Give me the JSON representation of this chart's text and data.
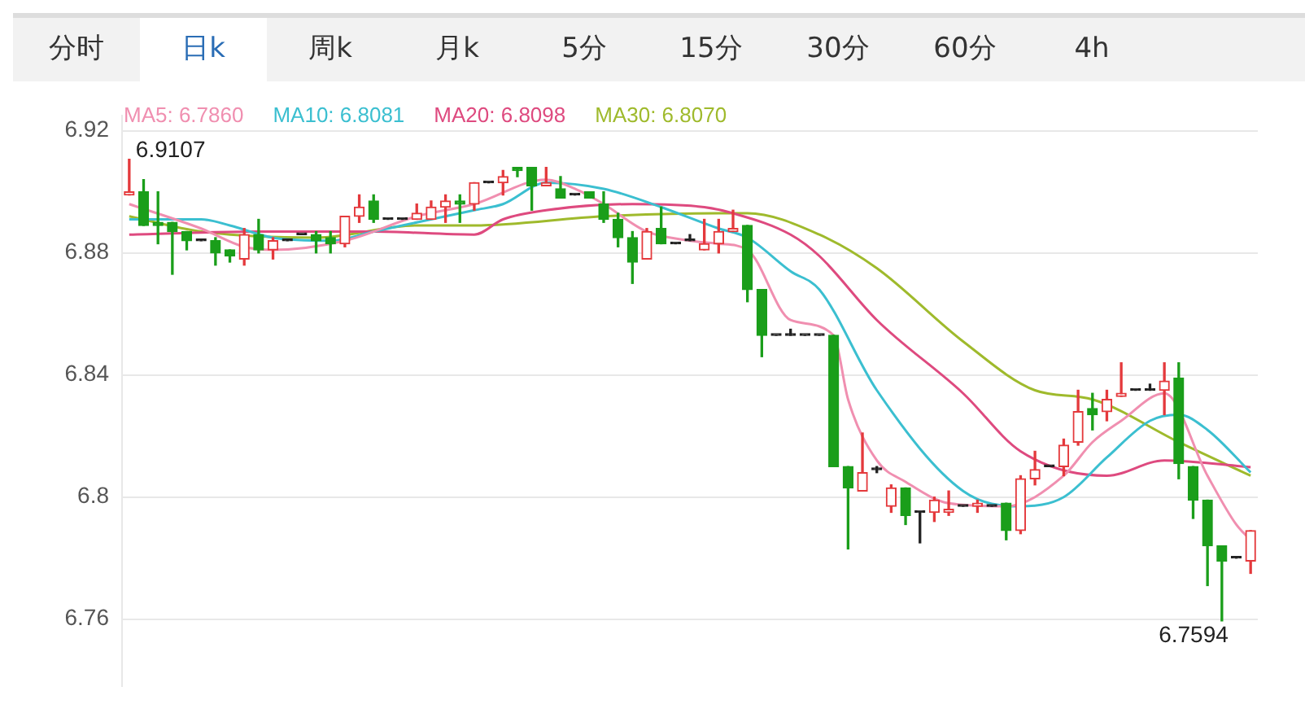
{
  "chart_data": {
    "type": "candlestick",
    "categories": [
      null,
      null,
      null,
      null,
      null,
      null,
      null,
      null,
      null,
      null,
      null,
      null,
      null,
      null,
      null,
      null,
      null,
      null,
      null,
      null,
      null,
      null,
      null,
      null,
      null,
      null,
      null,
      null,
      null,
      null,
      null,
      null,
      null,
      null,
      null,
      null,
      null,
      null,
      null,
      null,
      null,
      null,
      null,
      null,
      null,
      null,
      null,
      null,
      null,
      null,
      null,
      null,
      null,
      null,
      null,
      null,
      null,
      null,
      null,
      null,
      null,
      null,
      null,
      null,
      null,
      null,
      null,
      null,
      null,
      null,
      null,
      null,
      null,
      null,
      null,
      null,
      null,
      null,
      null
    ],
    "ohlc": [
      [
        6.899,
        6.9107,
        6.899,
        6.9
      ],
      [
        6.9,
        6.904,
        6.889,
        6.889
      ],
      [
        6.89,
        6.9,
        6.883,
        6.889
      ],
      [
        6.89,
        6.89,
        6.873,
        6.887
      ],
      [
        6.887,
        6.887,
        6.881,
        6.884
      ],
      [
        6.884,
        6.884,
        6.884,
        6.884
      ],
      [
        6.884,
        6.885,
        6.876,
        6.88
      ],
      [
        6.881,
        6.881,
        6.877,
        6.879
      ],
      [
        6.878,
        6.888,
        6.876,
        6.886
      ],
      [
        6.886,
        6.891,
        6.88,
        6.881
      ],
      [
        6.881,
        6.885,
        6.878,
        6.884
      ],
      [
        6.884,
        6.884,
        6.884,
        6.884
      ],
      [
        6.886,
        6.886,
        6.886,
        6.886
      ],
      [
        6.886,
        6.887,
        6.88,
        6.884
      ],
      [
        6.885,
        6.887,
        6.88,
        6.883
      ],
      [
        6.883,
        6.892,
        6.882,
        6.892
      ],
      [
        6.892,
        6.899,
        6.89,
        6.895
      ],
      [
        6.897,
        6.899,
        6.89,
        6.891
      ],
      [
        6.891,
        6.891,
        6.891,
        6.891
      ],
      [
        6.891,
        6.891,
        6.891,
        6.891
      ],
      [
        6.891,
        6.896,
        6.891,
        6.893
      ],
      [
        6.891,
        6.897,
        6.891,
        6.895
      ],
      [
        6.895,
        6.899,
        6.89,
        6.897
      ],
      [
        6.897,
        6.899,
        6.89,
        6.896
      ],
      [
        6.896,
        6.903,
        6.894,
        6.903
      ],
      [
        6.903,
        6.903,
        6.903,
        6.903
      ],
      [
        6.903,
        6.907,
        6.899,
        6.905
      ],
      [
        6.908,
        6.908,
        6.905,
        6.907
      ],
      [
        6.908,
        6.908,
        6.894,
        6.902
      ],
      [
        6.902,
        6.908,
        6.902,
        6.903
      ],
      [
        6.901,
        6.905,
        6.898,
        6.898
      ],
      [
        6.899,
        6.899,
        6.899,
        6.899
      ],
      [
        6.9,
        6.9,
        6.898,
        6.898
      ],
      [
        6.896,
        6.9,
        6.89,
        6.891
      ],
      [
        6.891,
        6.893,
        6.882,
        6.885
      ],
      [
        6.885,
        6.887,
        6.87,
        6.877
      ],
      [
        6.878,
        6.888,
        6.878,
        6.887
      ],
      [
        6.888,
        6.895,
        6.883,
        6.883
      ],
      [
        6.883,
        6.883,
        6.883,
        6.883
      ],
      [
        6.884,
        6.886,
        6.884,
        6.884
      ],
      [
        6.881,
        6.891,
        6.881,
        6.883
      ],
      [
        6.883,
        6.891,
        6.88,
        6.887
      ],
      [
        6.887,
        6.894,
        6.887,
        6.888
      ],
      [
        6.889,
        6.889,
        6.864,
        6.868
      ],
      [
        6.868,
        6.868,
        6.846,
        6.853
      ],
      [
        6.853,
        6.853,
        6.853,
        6.853
      ],
      [
        6.853,
        6.855,
        6.853,
        6.853
      ],
      [
        6.853,
        6.853,
        6.853,
        6.853
      ],
      [
        6.853,
        6.853,
        6.853,
        6.853
      ],
      [
        6.853,
        6.853,
        6.81,
        6.81
      ],
      [
        6.81,
        6.81,
        6.783,
        6.803
      ],
      [
        6.802,
        6.821,
        6.802,
        6.808
      ],
      [
        6.809,
        6.81,
        6.808,
        6.809
      ],
      [
        6.797,
        6.804,
        6.795,
        6.803
      ],
      [
        6.803,
        6.803,
        6.791,
        6.794
      ],
      [
        6.795,
        6.795,
        6.785,
        6.795
      ],
      [
        6.795,
        6.8,
        6.792,
        6.799
      ],
      [
        6.795,
        6.802,
        6.794,
        6.796
      ],
      [
        6.797,
        6.797,
        6.797,
        6.797
      ],
      [
        6.797,
        6.799,
        6.795,
        6.798
      ],
      [
        6.797,
        6.797,
        6.797,
        6.797
      ],
      [
        6.798,
        6.798,
        6.786,
        6.789
      ],
      [
        6.789,
        6.807,
        6.788,
        6.806
      ],
      [
        6.806,
        6.815,
        6.804,
        6.809
      ],
      [
        6.81,
        6.81,
        6.81,
        6.81
      ],
      [
        6.81,
        6.819,
        6.807,
        6.817
      ],
      [
        6.818,
        6.835,
        6.817,
        6.828
      ],
      [
        6.829,
        6.834,
        6.822,
        6.827
      ],
      [
        6.828,
        6.835,
        6.825,
        6.832
      ],
      [
        6.833,
        6.844,
        6.833,
        6.834
      ],
      [
        6.835,
        6.835,
        6.835,
        6.835
      ],
      [
        6.835,
        6.837,
        6.835,
        6.835
      ],
      [
        6.835,
        6.844,
        6.827,
        6.838
      ],
      [
        6.839,
        6.844,
        6.806,
        6.811
      ],
      [
        6.81,
        6.81,
        6.793,
        6.799
      ],
      [
        6.799,
        6.799,
        6.771,
        6.784
      ],
      [
        6.784,
        6.784,
        6.7594,
        6.779
      ],
      [
        6.78,
        6.78,
        6.78,
        6.78
      ],
      [
        6.779,
        6.789,
        6.775,
        6.789
      ]
    ],
    "series": [
      {
        "type": "line",
        "name": "MA5: 6.7860",
        "color": "#f08fb0",
        "values": [
          6.896,
          null,
          null,
          null,
          null,
          6.888,
          null,
          null,
          6.882,
          null,
          6.881,
          null,
          null,
          null,
          null,
          6.884,
          null,
          null,
          null,
          null,
          6.892,
          null,
          null,
          null,
          6.896,
          null,
          null,
          null,
          null,
          6.904,
          null,
          6.901,
          null,
          6.896,
          null,
          null,
          6.887,
          null,
          null,
          6.884,
          null,
          6.883,
          null,
          6.881,
          null,
          null,
          6.858,
          null,
          null,
          6.853,
          6.832,
          null,
          6.812,
          null,
          6.805,
          null,
          null,
          6.798,
          null,
          null,
          null,
          6.797,
          null,
          null,
          null,
          6.807,
          null,
          6.818,
          null,
          6.825,
          null,
          null,
          6.834,
          null,
          null,
          6.807,
          null,
          6.791,
          6.786
        ]
      },
      {
        "type": "line",
        "name": "MA10: 6.8081",
        "color": "#3bbfd0",
        "values": [
          6.891,
          null,
          null,
          null,
          null,
          6.891,
          null,
          6.889,
          null,
          null,
          6.885,
          null,
          null,
          null,
          6.884,
          null,
          null,
          6.887,
          null,
          null,
          6.89,
          null,
          null,
          null,
          6.894,
          null,
          6.896,
          null,
          null,
          6.903,
          null,
          null,
          null,
          6.901,
          null,
          null,
          null,
          6.895,
          null,
          null,
          null,
          6.888,
          null,
          6.885,
          null,
          null,
          6.874,
          null,
          6.868,
          null,
          null,
          null,
          6.835,
          null,
          null,
          null,
          null,
          null,
          6.802,
          null,
          null,
          null,
          6.797,
          null,
          null,
          6.8,
          null,
          null,
          6.813,
          null,
          null,
          6.825,
          null,
          6.827,
          null,
          6.822,
          null,
          null,
          6.8081
        ]
      },
      {
        "type": "line",
        "name": "MA20: 6.8098",
        "color": "#de4a7f",
        "values": [
          6.886,
          null,
          null,
          null,
          null,
          null,
          null,
          null,
          null,
          6.887,
          null,
          null,
          null,
          null,
          null,
          null,
          null,
          6.887,
          null,
          null,
          null,
          null,
          null,
          null,
          6.886,
          null,
          6.891,
          null,
          null,
          6.894,
          null,
          null,
          null,
          null,
          null,
          6.896,
          null,
          null,
          null,
          null,
          6.895,
          null,
          6.893,
          null,
          null,
          null,
          6.886,
          null,
          6.879,
          null,
          null,
          null,
          6.858,
          null,
          null,
          null,
          null,
          null,
          6.834,
          null,
          null,
          null,
          6.815,
          null,
          null,
          null,
          null,
          null,
          6.807,
          null,
          null,
          null,
          6.812,
          null,
          null,
          null,
          null,
          null,
          6.8098
        ]
      },
      {
        "type": "line",
        "name": "MA30: 6.8070",
        "color": "#9fba2c",
        "values": [
          6.892,
          null,
          null,
          null,
          null,
          6.887,
          null,
          null,
          null,
          null,
          null,
          null,
          null,
          6.885,
          null,
          null,
          null,
          null,
          null,
          null,
          6.889,
          null,
          null,
          null,
          6.889,
          null,
          null,
          null,
          null,
          null,
          null,
          null,
          null,
          6.892,
          null,
          null,
          null,
          null,
          null,
          null,
          null,
          6.893,
          null,
          6.893,
          null,
          null,
          null,
          null,
          6.886,
          null,
          null,
          null,
          6.875,
          null,
          null,
          null,
          null,
          null,
          6.851,
          null,
          null,
          null,
          null,
          6.835,
          null,
          null,
          null,
          6.832,
          null,
          null,
          null,
          null,
          null,
          6.818,
          null,
          null,
          null,
          null,
          6.807
        ]
      }
    ],
    "ylim": [
      6.738,
      6.925
    ],
    "yticks": [
      6.76,
      6.8,
      6.84,
      6.88,
      6.92
    ],
    "grid": "y",
    "legend": "top left",
    "tick_labels": "y",
    "annotations": [
      "分时",
      "日k",
      "周k",
      "月k",
      "5分",
      "15分",
      "30分",
      "60分",
      "4h",
      "6.9107",
      "6.7594"
    ]
  }
}
